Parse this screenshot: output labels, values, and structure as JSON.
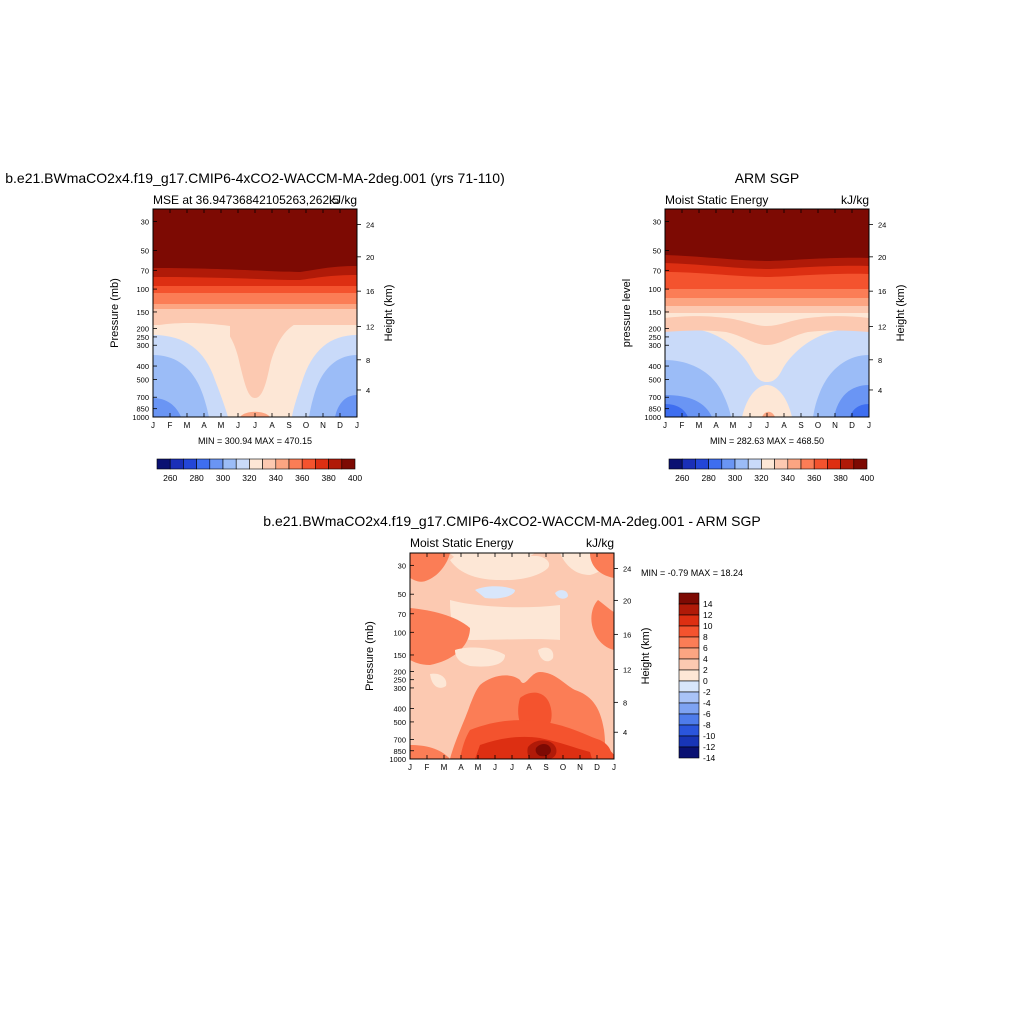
{
  "chart_data": [
    {
      "type": "heatmap",
      "panel": "model",
      "title": "b.e21.BWmaCO2x4.f19_g17.CMIP6-4xCO2-WACCM-MA-2deg.001 (yrs 71-110)",
      "subtitle_left": "MSE at 36.94736842105263,262.5",
      "subtitle_right": "kJ/kg",
      "ylabel_left": "Pressure (mb)",
      "ylabel_right": "Height (km)",
      "x_ticks": [
        "J",
        "F",
        "M",
        "A",
        "M",
        "J",
        "J",
        "A",
        "S",
        "O",
        "N",
        "D",
        "J"
      ],
      "y_ticks_pressure": [
        "30",
        "50",
        "70",
        "100",
        "150",
        "200",
        "250",
        "300",
        "400",
        "500",
        "700",
        "850",
        "1000"
      ],
      "y_ticks_height": [
        "24",
        "20",
        "16",
        "12",
        "8",
        "4"
      ],
      "stats": "MIN = 300.94 MAX = 470.15",
      "colorbar_labels": [
        "260",
        "280",
        "300",
        "320",
        "340",
        "360",
        "380",
        "400"
      ]
    },
    {
      "type": "heatmap",
      "panel": "observed",
      "title": "ARM SGP",
      "subtitle_left": "Moist Static Energy",
      "subtitle_right": "kJ/kg",
      "ylabel_left": "pressure level",
      "ylabel_right": "Height (km)",
      "x_ticks": [
        "J",
        "F",
        "M",
        "A",
        "M",
        "J",
        "J",
        "A",
        "S",
        "O",
        "N",
        "D",
        "J"
      ],
      "y_ticks_pressure": [
        "30",
        "50",
        "70",
        "100",
        "150",
        "200",
        "250",
        "300",
        "400",
        "500",
        "700",
        "850",
        "1000"
      ],
      "y_ticks_height": [
        "24",
        "20",
        "16",
        "12",
        "8",
        "4"
      ],
      "stats": "MIN = 282.63 MAX = 468.50",
      "colorbar_labels": [
        "260",
        "280",
        "300",
        "320",
        "340",
        "360",
        "380",
        "400"
      ]
    },
    {
      "type": "heatmap",
      "panel": "difference",
      "title": "b.e21.BWmaCO2x4.f19_g17.CMIP6-4xCO2-WACCM-MA-2deg.001 - ARM SGP",
      "subtitle_left": "Moist Static Energy",
      "subtitle_right": "kJ/kg",
      "ylabel_left": "Pressure (mb)",
      "ylabel_right": "Height (km)",
      "x_ticks": [
        "J",
        "F",
        "M",
        "A",
        "M",
        "J",
        "J",
        "A",
        "S",
        "O",
        "N",
        "D",
        "J"
      ],
      "y_ticks_pressure": [
        "30",
        "50",
        "70",
        "100",
        "150",
        "200",
        "250",
        "300",
        "400",
        "500",
        "700",
        "850",
        "1000"
      ],
      "y_ticks_height": [
        "24",
        "20",
        "16",
        "12",
        "8",
        "4"
      ],
      "stats": "MIN =  -0.79 MAX =  18.24",
      "colorbar_labels": [
        "14",
        "12",
        "10",
        "8",
        "6",
        "4",
        "2",
        "0",
        "-2",
        "-4",
        "-6",
        "-8",
        "-10",
        "-12",
        "-14"
      ]
    }
  ],
  "palette": {
    "full_scale": [
      "#0a1172",
      "#1a2fb8",
      "#2346d8",
      "#3e6ef0",
      "#6a95f4",
      "#9bbcf7",
      "#c9daf9",
      "#fde7d6",
      "#fcc9b1",
      "#fca582",
      "#fb7d56",
      "#f4532e",
      "#dd2f12",
      "#b01a08",
      "#7d0a03"
    ],
    "diff_scale": [
      "#7d0a03",
      "#b01a08",
      "#dd2f12",
      "#f4532e",
      "#fb7d56",
      "#fca582",
      "#fcc9b1",
      "#fde7d6",
      "#d8e6fb",
      "#a9c3f7",
      "#7ea3f2",
      "#4e7ceb",
      "#2a55dc",
      "#1835b6",
      "#0a1172"
    ]
  }
}
